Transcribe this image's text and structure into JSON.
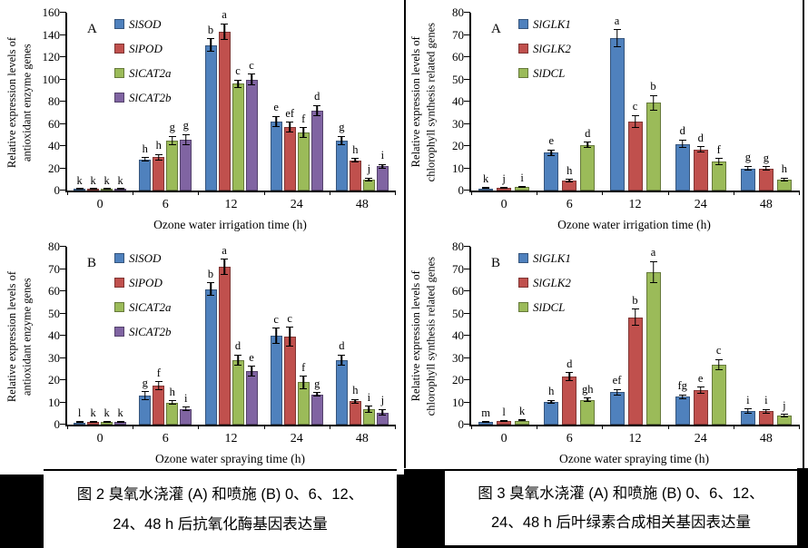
{
  "figure": {
    "description_left": "Figure 2 antioxidant enzyme genes expression",
    "description_right": "Figure 3 chlorophyll synthesis related genes expression"
  },
  "captions": [
    {
      "line1": "图 2  臭氧水浇灌 (A) 和喷施 (B) 0、6、12、",
      "line2": "24、48 h 后抗氧化酶基因表达量"
    },
    {
      "line1": "图 3  臭氧水浇灌 (A) 和喷施 (B) 0、6、12、",
      "line2": "24、48 h 后叶绿素合成相关基因表达量"
    }
  ],
  "palette": {
    "blue": "#4F81BD",
    "blue_border": "#36557C",
    "red": "#C0504D",
    "red_border": "#7F3533",
    "green": "#9BBB59",
    "green_border": "#66793B",
    "purple": "#8064A2",
    "purple_border": "#54426B"
  },
  "chart_data": [
    {
      "type": "bar",
      "panel_label": "A",
      "ylabel_lines": [
        "Relative expression levels of",
        "antioxidant enzyme genes"
      ],
      "xlabel": "Ozone water irrigation time (h)",
      "ylim": [
        0,
        160
      ],
      "ystep": 20,
      "grid": false,
      "legend_position": "upper-left-inside",
      "categories": [
        "0",
        "6",
        "12",
        "24",
        "48"
      ],
      "series": [
        {
          "name": "SlSOD",
          "fill": "#4F81BD",
          "border": "#36557C",
          "values": [
            1,
            28,
            131,
            62,
            45
          ],
          "errors": [
            0.5,
            2,
            6,
            5,
            4
          ],
          "letters": [
            "k",
            "h",
            "b",
            "e",
            "g"
          ]
        },
        {
          "name": "SlPOD",
          "fill": "#C0504D",
          "border": "#7F3533",
          "values": [
            1,
            30,
            143,
            57,
            27
          ],
          "errors": [
            0.5,
            3,
            7.5,
            5,
            2
          ],
          "letters": [
            "k",
            "h",
            "a",
            "ef",
            "h"
          ]
        },
        {
          "name": "SlCAT2a",
          "fill": "#9BBB59",
          "border": "#66793B",
          "values": [
            1,
            45,
            96,
            52,
            10
          ],
          "errors": [
            0.5,
            4,
            4,
            5,
            1.5
          ],
          "letters": [
            "k",
            "g",
            "c",
            "f",
            "j"
          ]
        },
        {
          "name": "SlCAT2b",
          "fill": "#8064A2",
          "border": "#54426B",
          "values": [
            1,
            46,
            100,
            72,
            22
          ],
          "errors": [
            0.5,
            5,
            5,
            5,
            2
          ],
          "letters": [
            "k",
            "g",
            "c",
            "d",
            "i"
          ]
        }
      ]
    },
    {
      "type": "bar",
      "panel_label": "B",
      "ylabel_lines": [
        "Relative expression levels of",
        "antioxidant enzyme genes"
      ],
      "xlabel": "Ozone water spraying time (h)",
      "ylim": [
        0,
        80
      ],
      "ystep": 10,
      "grid": false,
      "legend_position": "upper-left-inside",
      "categories": [
        "0",
        "6",
        "12",
        "24",
        "48"
      ],
      "series": [
        {
          "name": "SlSOD",
          "fill": "#4F81BD",
          "border": "#36557C",
          "values": [
            1,
            13,
            61,
            40,
            29
          ],
          "errors": [
            0.3,
            2,
            3,
            3.5,
            2.5
          ],
          "letters": [
            "l",
            "g",
            "b",
            "c",
            "d"
          ]
        },
        {
          "name": "SlPOD",
          "fill": "#C0504D",
          "border": "#7F3533",
          "values": [
            1.3,
            17.5,
            71,
            39.5,
            10.5
          ],
          "errors": [
            0.3,
            2,
            3.5,
            4.5,
            1
          ],
          "letters": [
            "k",
            "f",
            "a",
            "c",
            "h"
          ]
        },
        {
          "name": "SlCAT2a",
          "fill": "#9BBB59",
          "border": "#66793B",
          "values": [
            1.3,
            10,
            29,
            19,
            7
          ],
          "errors": [
            0.3,
            1,
            2.5,
            3,
            1.5
          ],
          "letters": [
            "k",
            "h",
            "d",
            "f",
            "i"
          ]
        },
        {
          "name": "SlCAT2b",
          "fill": "#8064A2",
          "border": "#54426B",
          "values": [
            1.3,
            7,
            24,
            13.5,
            5.5
          ],
          "errors": [
            0.3,
            1,
            2.5,
            1,
            1.5
          ],
          "letters": [
            "k",
            "i",
            "e",
            "g",
            "j"
          ]
        }
      ]
    },
    {
      "type": "bar",
      "panel_label": "A",
      "ylabel_lines": [
        "Relative expression levels of",
        "chlorophyll synthesis related genes"
      ],
      "xlabel": "Ozone water irrigation time (h)",
      "ylim": [
        0,
        80
      ],
      "ystep": 10,
      "grid": false,
      "legend_position": "upper-left-inside",
      "categories": [
        "0",
        "6",
        "12",
        "24",
        "48"
      ],
      "series": [
        {
          "name": "SlGLK1",
          "fill": "#4F81BD",
          "border": "#36557C",
          "values": [
            1,
            17,
            68.5,
            21,
            10
          ],
          "errors": [
            0.3,
            1.5,
            4,
            2,
            1.2
          ],
          "letters": [
            "k",
            "e",
            "a",
            "d",
            "g"
          ]
        },
        {
          "name": "SlGLK2",
          "fill": "#C0504D",
          "border": "#7F3533",
          "values": [
            1.2,
            4.5,
            31,
            18.5,
            10
          ],
          "errors": [
            0.3,
            0.8,
            3,
            1.5,
            1
          ],
          "letters": [
            "j",
            "h",
            "c",
            "d",
            "g"
          ]
        },
        {
          "name": "SlDCL",
          "fill": "#9BBB59",
          "border": "#66793B",
          "values": [
            1.7,
            20.5,
            39.5,
            13,
            5
          ],
          "errors": [
            0.3,
            1.5,
            3.5,
            1.5,
            0.8
          ],
          "letters": [
            "i",
            "d",
            "b",
            "f",
            "h"
          ]
        }
      ]
    },
    {
      "type": "bar",
      "panel_label": "B",
      "ylabel_lines": [
        "Relative expression levels of",
        "chlorophyll synthesis related genes"
      ],
      "xlabel": "Ozone water spraying time (h)",
      "ylim": [
        0,
        80
      ],
      "ystep": 10,
      "grid": false,
      "legend_position": "upper-left-inside",
      "categories": [
        "0",
        "6",
        "12",
        "24",
        "48"
      ],
      "series": [
        {
          "name": "SlGLK1",
          "fill": "#4F81BD",
          "border": "#36557C",
          "values": [
            1.3,
            10.2,
            14.5,
            12.5,
            6
          ],
          "errors": [
            0.3,
            1,
            1.5,
            1,
            1.2
          ],
          "letters": [
            "m",
            "h",
            "ef",
            "fg",
            "i"
          ]
        },
        {
          "name": "SlGLK2",
          "fill": "#C0504D",
          "border": "#7F3533",
          "values": [
            1.5,
            21.5,
            48.3,
            15.5,
            6
          ],
          "errors": [
            0.3,
            2,
            3.8,
            1.5,
            1
          ],
          "letters": [
            "l",
            "d",
            "b",
            "e",
            "i"
          ]
        },
        {
          "name": "SlDCL",
          "fill": "#9BBB59",
          "border": "#66793B",
          "values": [
            1.8,
            11.2,
            68.5,
            27,
            4
          ],
          "errors": [
            0.3,
            1,
            5,
            2.5,
            0.8
          ],
          "letters": [
            "k",
            "gh",
            "a",
            "c",
            "j"
          ]
        }
      ]
    }
  ]
}
